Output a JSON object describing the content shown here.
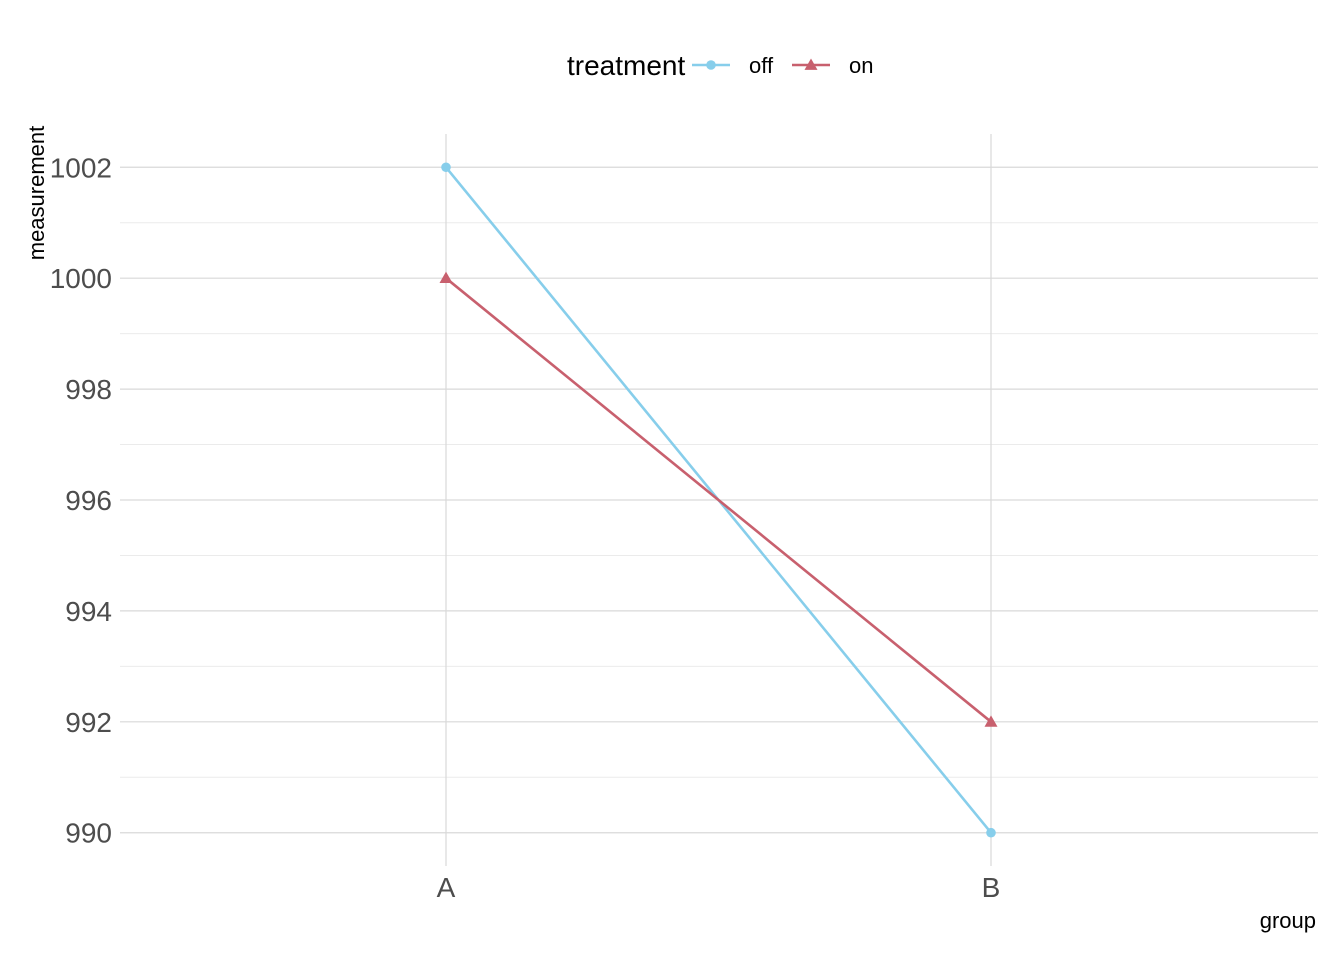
{
  "chart_data": {
    "type": "line",
    "categories": [
      "A",
      "B"
    ],
    "series": [
      {
        "name": "off",
        "values": [
          1002,
          990
        ],
        "color": "#87ceeb",
        "marker": "circle"
      },
      {
        "name": "on",
        "values": [
          1000,
          992
        ],
        "color": "#c8606e",
        "marker": "triangle"
      }
    ],
    "legend_title": "treatment",
    "legend_position": "top",
    "xlabel": "group",
    "ylabel": "measurement",
    "ylim": [
      989.4,
      1002.6
    ],
    "yticks": [
      990,
      992,
      994,
      996,
      998,
      1000,
      1002
    ],
    "yminor": [
      991,
      993,
      995,
      997,
      999,
      1001
    ],
    "grid": true
  }
}
